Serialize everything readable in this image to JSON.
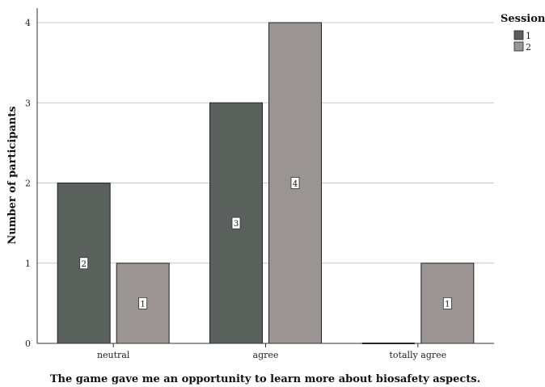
{
  "chart_data": {
    "type": "bar",
    "categories": [
      "neutral",
      "agree",
      "totally agree"
    ],
    "series": [
      {
        "name": "1",
        "values": [
          2,
          3,
          0
        ],
        "color": "#5a615c"
      },
      {
        "name": "2",
        "values": [
          1,
          4,
          1
        ],
        "color": "#9a9593"
      }
    ],
    "xlabel": "The game gave me an opportunity to learn more about biosafety aspects.",
    "ylabel": "Number of participants",
    "ylim": [
      0,
      4
    ],
    "yticks": [
      0,
      1,
      2,
      3,
      4
    ],
    "grid": true,
    "legend": {
      "title": "Session",
      "placement": "top-right"
    },
    "data_labels": true
  }
}
